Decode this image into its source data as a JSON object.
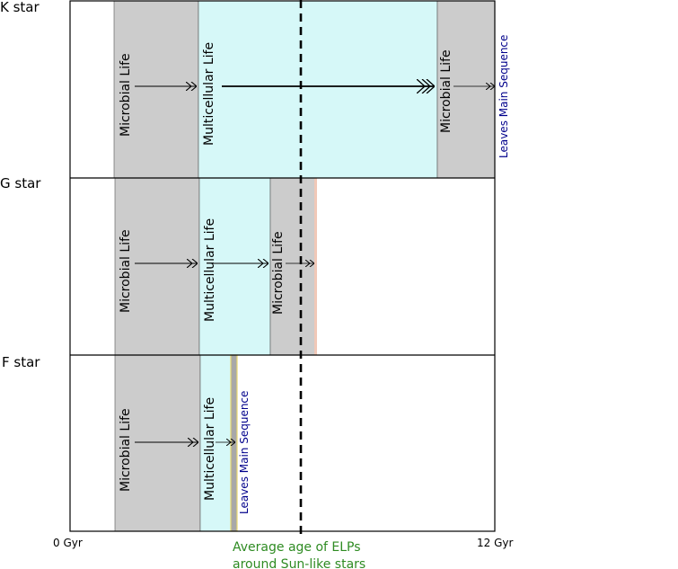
{
  "rows": {
    "k": {
      "label": "K star",
      "band1": "Microbial Life",
      "band2": "Multicellular Life",
      "band3": "Microbial Life",
      "end": "Leaves Main Sequence"
    },
    "g": {
      "label": "G star",
      "band1": "Microbial Life",
      "band2": "Multicellular Life",
      "band3": "Microbial Life"
    },
    "f": {
      "label": "F star",
      "band1": "Microbial Life",
      "band2": "Multicellular Life",
      "end": "Leaves Main Sequence"
    }
  },
  "axis": {
    "start": "0 Gyr",
    "end": "12 Gyr"
  },
  "average_line": {
    "line1": "Average age of ELPs",
    "line2": "around Sun-like stars"
  },
  "colors": {
    "microbial": "#cccccc",
    "multicellular": "#d6f8f8",
    "sequence_text": "#00008b",
    "average_text": "#2e8b22",
    "salmon_edge": "#f0c8b8",
    "yellow_edge": "#e8d870"
  }
}
